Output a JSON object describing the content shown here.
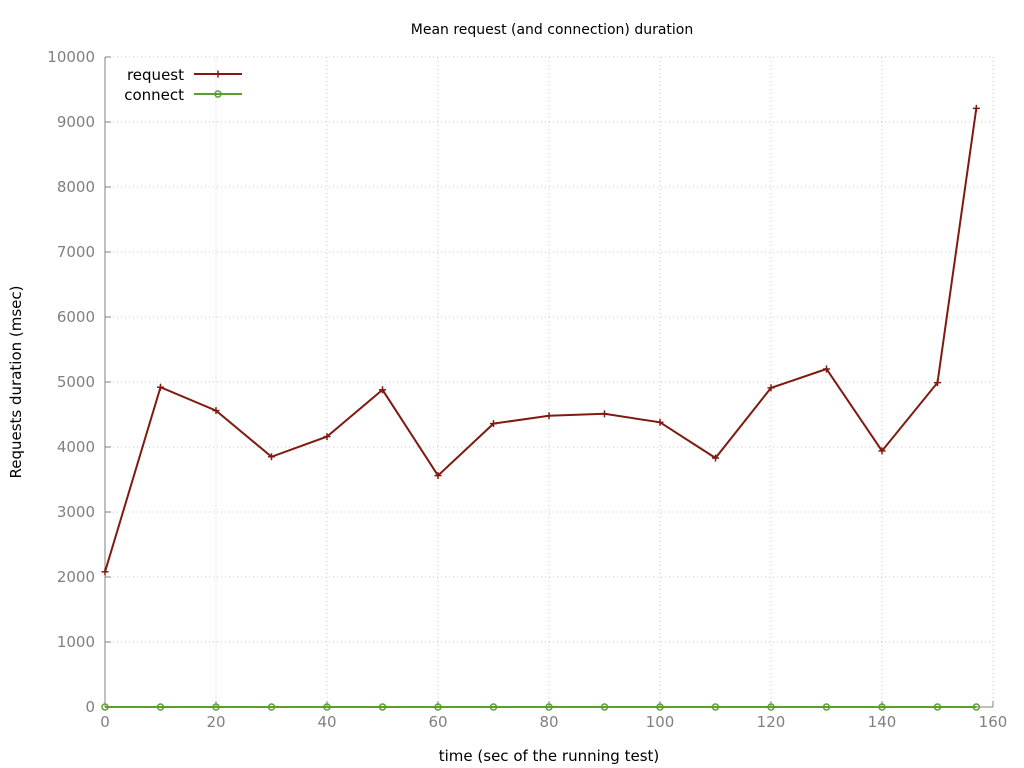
{
  "chart_data": {
    "type": "line",
    "title": "Mean request (and connection) duration",
    "xlabel": "time (sec of the running test)",
    "ylabel": "Requests duration (msec)",
    "xlim": [
      0,
      160
    ],
    "ylim": [
      0,
      10000
    ],
    "xticks": [
      0,
      20,
      40,
      60,
      80,
      100,
      120,
      140,
      160
    ],
    "yticks": [
      0,
      1000,
      2000,
      3000,
      4000,
      5000,
      6000,
      7000,
      8000,
      9000,
      10000
    ],
    "grid": true,
    "legend_position": "top-left",
    "series": [
      {
        "name": "request",
        "color": "#7f1a11",
        "marker": "plus",
        "points": [
          [
            0,
            2080
          ],
          [
            10,
            4920
          ],
          [
            20,
            4560
          ],
          [
            30,
            3850
          ],
          [
            40,
            4160
          ],
          [
            50,
            4880
          ],
          [
            60,
            3560
          ],
          [
            70,
            4360
          ],
          [
            80,
            4480
          ],
          [
            90,
            4510
          ],
          [
            100,
            4380
          ],
          [
            110,
            3830
          ],
          [
            120,
            4910
          ],
          [
            130,
            5200
          ],
          [
            140,
            3940
          ],
          [
            150,
            4990
          ],
          [
            157,
            9210
          ]
        ]
      },
      {
        "name": "connect",
        "color": "#5a9e32",
        "marker": "circle",
        "points": [
          [
            0,
            0
          ],
          [
            10,
            0
          ],
          [
            20,
            0
          ],
          [
            30,
            0
          ],
          [
            40,
            0
          ],
          [
            50,
            0
          ],
          [
            60,
            0
          ],
          [
            70,
            0
          ],
          [
            80,
            0
          ],
          [
            90,
            0
          ],
          [
            100,
            0
          ],
          [
            110,
            0
          ],
          [
            120,
            0
          ],
          [
            130,
            0
          ],
          [
            140,
            0
          ],
          [
            150,
            0
          ],
          [
            157,
            0
          ]
        ]
      }
    ]
  }
}
